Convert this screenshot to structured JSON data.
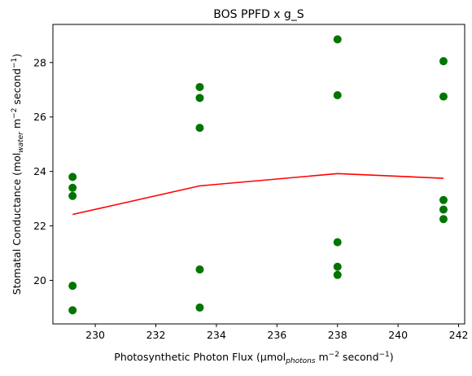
{
  "chart_data": {
    "type": "scatter",
    "title": "BOS PPFD x g_S",
    "xlabel": {
      "main": "Photosynthetic Photon Flux (μmol",
      "sub": "photons",
      "mid": " m",
      "sup1": "−2",
      "mid2": " second",
      "sup2": "−1",
      "end": ")"
    },
    "ylabel": {
      "main": "Stomatal Conductance (mol",
      "sub": "water",
      "mid": " m",
      "sup1": "−2",
      "mid2": " second",
      "sup2": "−1",
      "end": ")"
    },
    "xlim": [
      228.6,
      242.2
    ],
    "ylim": [
      18.4,
      29.4
    ],
    "xticks": [
      230,
      232,
      234,
      236,
      238,
      240,
      242
    ],
    "yticks": [
      20,
      22,
      24,
      26,
      28
    ],
    "grid": false,
    "colors": {
      "points": "#007500",
      "line": "#ff0000"
    },
    "scatter": [
      {
        "x": 229.25,
        "y": 23.8
      },
      {
        "x": 229.25,
        "y": 23.4
      },
      {
        "x": 229.25,
        "y": 23.1
      },
      {
        "x": 229.25,
        "y": 19.8
      },
      {
        "x": 229.25,
        "y": 18.9
      },
      {
        "x": 233.45,
        "y": 27.1
      },
      {
        "x": 233.45,
        "y": 26.7
      },
      {
        "x": 233.45,
        "y": 25.6
      },
      {
        "x": 233.45,
        "y": 20.4
      },
      {
        "x": 233.45,
        "y": 19.0
      },
      {
        "x": 238.0,
        "y": 28.85
      },
      {
        "x": 238.0,
        "y": 26.8
      },
      {
        "x": 238.0,
        "y": 21.4
      },
      {
        "x": 238.0,
        "y": 20.5
      },
      {
        "x": 238.0,
        "y": 20.2
      },
      {
        "x": 241.5,
        "y": 28.05
      },
      {
        "x": 241.5,
        "y": 26.75
      },
      {
        "x": 241.5,
        "y": 22.95
      },
      {
        "x": 241.5,
        "y": 22.6
      },
      {
        "x": 241.5,
        "y": 22.25
      }
    ],
    "line": [
      {
        "x": 229.25,
        "y": 22.42
      },
      {
        "x": 233.45,
        "y": 23.47
      },
      {
        "x": 238.0,
        "y": 23.92
      },
      {
        "x": 241.5,
        "y": 23.75
      }
    ]
  }
}
